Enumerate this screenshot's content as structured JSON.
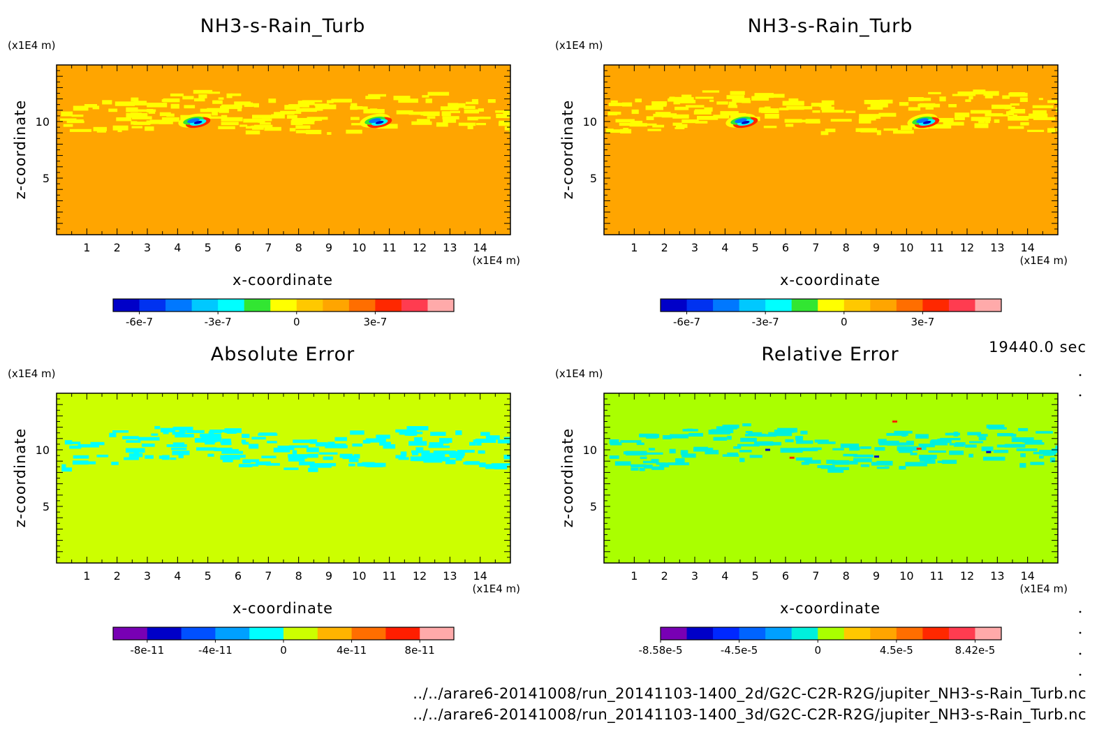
{
  "figure": {
    "time_label": "19440.0 sec",
    "footer": [
      "../../arare6-20141008/run_20141103-1400_2d/G2C-C2R-R2G/jupiter_NH3-s-Rain_Turb.nc",
      "../../arare6-20141008/run_20141103-1400_3d/G2C-C2R-R2G/jupiter_NH3-s-Rain_Turb.nc"
    ]
  },
  "chart_data": [
    {
      "type": "heatmap",
      "title": "NH3-s-Rain_Turb",
      "xlabel": "x-coordinate",
      "ylabel": "z-coordinate",
      "x_unit": "(x1E4 m)",
      "y_unit": "(x1E4 m)",
      "xlim": [
        0,
        15
      ],
      "ylim": [
        0,
        15
      ],
      "x_ticks": [
        1,
        2,
        3,
        4,
        5,
        6,
        7,
        8,
        9,
        10,
        11,
        12,
        13,
        14
      ],
      "y_ticks": [
        5,
        10
      ],
      "background_color": "#ffa500",
      "features": [
        {
          "kind": "band",
          "z_center": 10.8,
          "color": "#ffff00"
        },
        {
          "kind": "dipole",
          "x": 4.6,
          "z": 10.0
        },
        {
          "kind": "dipole",
          "x": 10.6,
          "z": 10.0
        }
      ],
      "colorbar": {
        "colors": [
          "#0000c8",
          "#0032f0",
          "#0078ff",
          "#00c8ff",
          "#00ffff",
          "#32e632",
          "#ffff00",
          "#ffc800",
          "#ffa500",
          "#ff6e00",
          "#ff2800",
          "#ff3c50",
          "#ffaaaa"
        ],
        "tick_labels": [
          "-6e-7",
          "-3e-7",
          "0",
          "3e-7"
        ],
        "tick_positions": [
          1,
          4,
          7,
          10
        ]
      }
    },
    {
      "type": "heatmap",
      "title": "NH3-s-Rain_Turb",
      "xlabel": "x-coordinate",
      "ylabel": "z-coordinate",
      "x_unit": "(x1E4 m)",
      "y_unit": "(x1E4 m)",
      "xlim": [
        0,
        15
      ],
      "ylim": [
        0,
        15
      ],
      "x_ticks": [
        1,
        2,
        3,
        4,
        5,
        6,
        7,
        8,
        9,
        10,
        11,
        12,
        13,
        14
      ],
      "y_ticks": [
        5,
        10
      ],
      "background_color": "#ffa500",
      "features": [
        {
          "kind": "band",
          "z_center": 10.8,
          "color": "#ffff00"
        },
        {
          "kind": "dipole",
          "x": 4.6,
          "z": 10.0
        },
        {
          "kind": "dipole",
          "x": 10.6,
          "z": 10.0
        }
      ],
      "colorbar": {
        "colors": [
          "#0000c8",
          "#0032f0",
          "#0078ff",
          "#00c8ff",
          "#00ffff",
          "#32e632",
          "#ffff00",
          "#ffc800",
          "#ffa500",
          "#ff6e00",
          "#ff2800",
          "#ff3c50",
          "#ffaaaa"
        ],
        "tick_labels": [
          "-6e-7",
          "-3e-7",
          "0",
          "3e-7"
        ],
        "tick_positions": [
          1,
          4,
          7,
          10
        ]
      }
    },
    {
      "type": "heatmap",
      "title": "Absolute Error",
      "xlabel": "x-coordinate",
      "ylabel": "z-coordinate",
      "x_unit": "(x1E4 m)",
      "y_unit": "(x1E4 m)",
      "xlim": [
        0,
        15
      ],
      "ylim": [
        0,
        15
      ],
      "x_ticks": [
        1,
        2,
        3,
        4,
        5,
        6,
        7,
        8,
        9,
        10,
        11,
        12,
        13,
        14
      ],
      "y_ticks": [
        5,
        10
      ],
      "background_color": "#ccff00",
      "features": [
        {
          "kind": "band",
          "z_center": 10.3,
          "color": "#00ffff"
        }
      ],
      "colorbar": {
        "colors": [
          "#7800b4",
          "#0000c8",
          "#0050ff",
          "#00a0ff",
          "#00ffff",
          "#ccff00",
          "#ffb400",
          "#ff6e00",
          "#ff1e00",
          "#ffaaaa"
        ],
        "tick_labels": [
          "-8e-11",
          "-4e-11",
          "0",
          "4e-11",
          "8e-11"
        ],
        "tick_positions": [
          1,
          3,
          5,
          7,
          9
        ]
      }
    },
    {
      "type": "heatmap",
      "title": "Relative Error",
      "xlabel": "x-coordinate",
      "ylabel": "z-coordinate",
      "x_unit": "(x1E4 m)",
      "y_unit": "(x1E4 m)",
      "xlim": [
        0,
        15
      ],
      "ylim": [
        0,
        15
      ],
      "x_ticks": [
        1,
        2,
        3,
        4,
        5,
        6,
        7,
        8,
        9,
        10,
        11,
        12,
        13,
        14
      ],
      "y_ticks": [
        5,
        10
      ],
      "background_color": "#aaff00",
      "features": [
        {
          "kind": "band",
          "z_center": 10.3,
          "color": "#00f0dc"
        },
        {
          "kind": "spot",
          "x": 5.4,
          "z": 10.0,
          "color": "#0000c8"
        },
        {
          "kind": "spot",
          "x": 6.2,
          "z": 9.3,
          "color": "#ff2800"
        },
        {
          "kind": "spot",
          "x": 9.0,
          "z": 9.4,
          "color": "#0000c8"
        },
        {
          "kind": "spot",
          "x": 9.6,
          "z": 12.5,
          "color": "#ff2800"
        },
        {
          "kind": "spot",
          "x": 10.4,
          "z": 10.1,
          "color": "#ff2800"
        },
        {
          "kind": "spot",
          "x": 12.7,
          "z": 9.8,
          "color": "#0000c8"
        }
      ],
      "colorbar": {
        "colors": [
          "#7800b4",
          "#0000c8",
          "#0028ff",
          "#0064ff",
          "#00a0ff",
          "#00f0dc",
          "#aaff00",
          "#ffc800",
          "#ffa500",
          "#ff6e00",
          "#ff2800",
          "#ff3c50",
          "#ffaaaa"
        ],
        "tick_labels": [
          "-8.58e-5",
          "-4.5e-5",
          "0",
          "4.5e-5",
          "8.42e-5"
        ],
        "tick_positions": [
          0,
          3,
          6,
          9,
          12
        ]
      }
    }
  ]
}
